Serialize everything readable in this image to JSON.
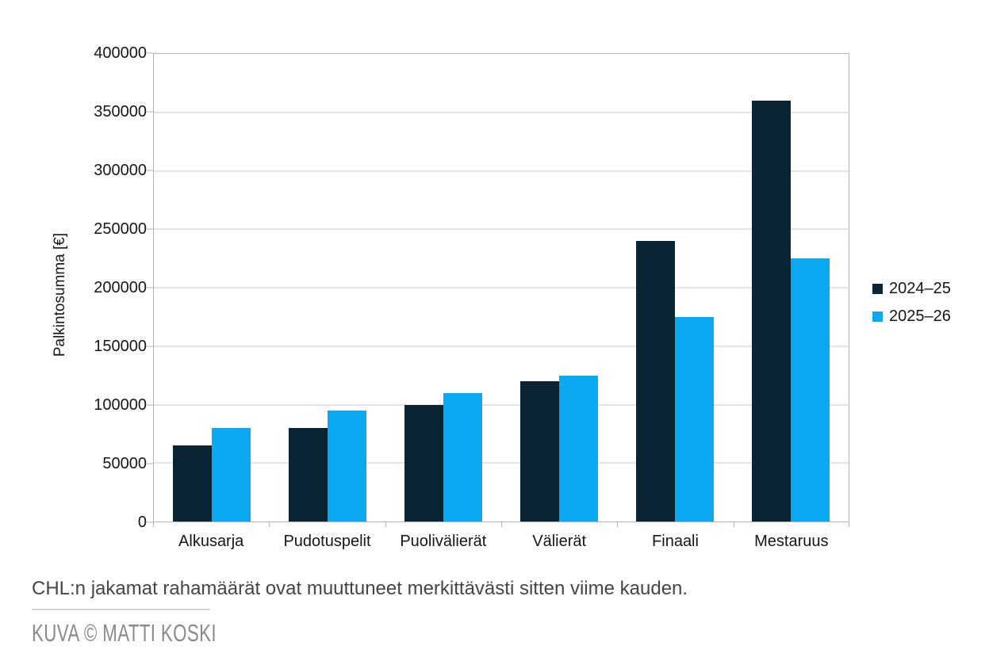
{
  "chart_data": {
    "type": "bar",
    "categories": [
      "Alkusarja",
      "Pudotuspelit",
      "Puolivälierät",
      "Välierät",
      "Finaali",
      "Mestaruus"
    ],
    "series": [
      {
        "name": "2024–25",
        "color": "#0b2433",
        "values": [
          65000,
          80000,
          100000,
          120000,
          240000,
          360000
        ]
      },
      {
        "name": "2025–26",
        "color": "#0aa9f2",
        "values": [
          80000,
          95000,
          110000,
          125000,
          175000,
          225000
        ]
      }
    ],
    "title": "",
    "xlabel": "",
    "ylabel": "Palkintosumma [€]",
    "ylim": [
      0,
      400000
    ],
    "ytick_step": 50000,
    "y_tick_labels": [
      "0",
      "50000",
      "100000",
      "150000",
      "200000",
      "250000",
      "300000",
      "350000",
      "400000"
    ],
    "grid": "horizontal",
    "legend_position": "right"
  },
  "caption": {
    "text": "CHL:n jakamat rahamäärät ovat muuttuneet merkittävästi sitten viime kauden."
  },
  "credit": {
    "text": "KUVA © MATTI KOSKI"
  },
  "colors": {
    "grid": "#c9c9c9",
    "axis_line": "#b3b3b3",
    "axis_text": "#161616",
    "caption_text": "#454545",
    "credit_text": "#8a8a8a",
    "divider": "#d2d2d2",
    "background": "#ffffff"
  }
}
